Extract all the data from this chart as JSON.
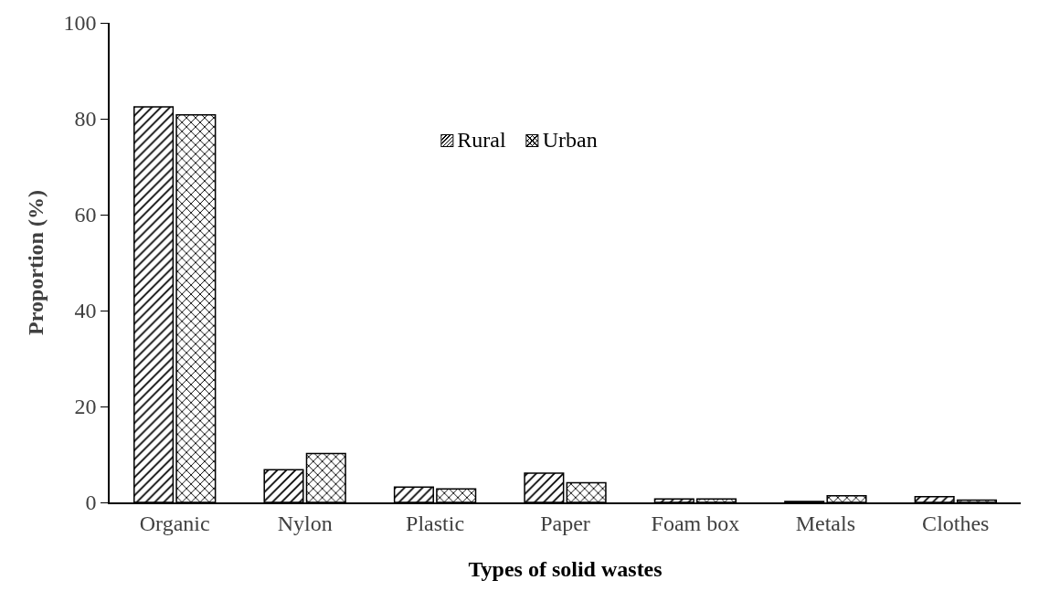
{
  "chart_data": {
    "type": "bar",
    "xlabel": "Types of solid wastes",
    "ylabel": "Proportion (%)",
    "categories": [
      "Organic",
      "Nylon",
      "Plastic",
      "Paper",
      "Foam box",
      "Metals",
      "Clothes"
    ],
    "series": [
      {
        "name": "Rural",
        "color": "#000000",
        "values": [
          82.5,
          6.8,
          3.2,
          6.1,
          0.7,
          0.2,
          1.2
        ]
      },
      {
        "name": "Urban",
        "color": "#000000",
        "values": [
          80.8,
          10.2,
          2.8,
          4.1,
          0.7,
          1.4,
          0.5
        ]
      }
    ],
    "ylim": [
      0,
      100
    ],
    "yticks": [
      0,
      20,
      40,
      60,
      80,
      100
    ],
    "grid": false,
    "legend": "top"
  }
}
